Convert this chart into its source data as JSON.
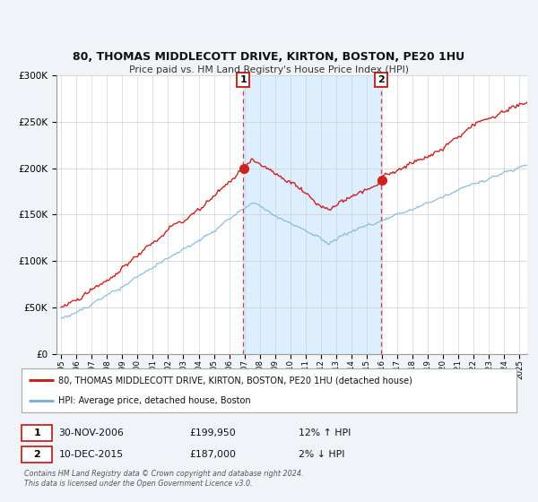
{
  "title": "80, THOMAS MIDDLECOTT DRIVE, KIRTON, BOSTON, PE20 1HU",
  "subtitle": "Price paid vs. HM Land Registry's House Price Index (HPI)",
  "legend_line1": "80, THOMAS MIDDLECOTT DRIVE, KIRTON, BOSTON, PE20 1HU (detached house)",
  "legend_line2": "HPI: Average price, detached house, Boston",
  "marker1_date": "30-NOV-2006",
  "marker1_price": "£199,950",
  "marker1_hpi": "12% ↑ HPI",
  "marker2_date": "10-DEC-2015",
  "marker2_price": "£187,000",
  "marker2_hpi": "2% ↓ HPI",
  "footer1": "Contains HM Land Registry data © Crown copyright and database right 2024.",
  "footer2": "This data is licensed under the Open Government Licence v3.0.",
  "hpi_color": "#7bb4d8",
  "price_color": "#cc2222",
  "bg_color": "#f0f4f8",
  "plot_bg": "#ffffff",
  "shade_color": "#ddeeff",
  "ylim": [
    0,
    300000
  ],
  "yticks": [
    0,
    50000,
    100000,
    150000,
    200000,
    250000,
    300000
  ],
  "xmin": 1994.7,
  "xmax": 2025.5,
  "marker1_year": 2006.917,
  "marker2_year": 2015.958,
  "marker1_value": 199950,
  "marker2_value": 187000
}
